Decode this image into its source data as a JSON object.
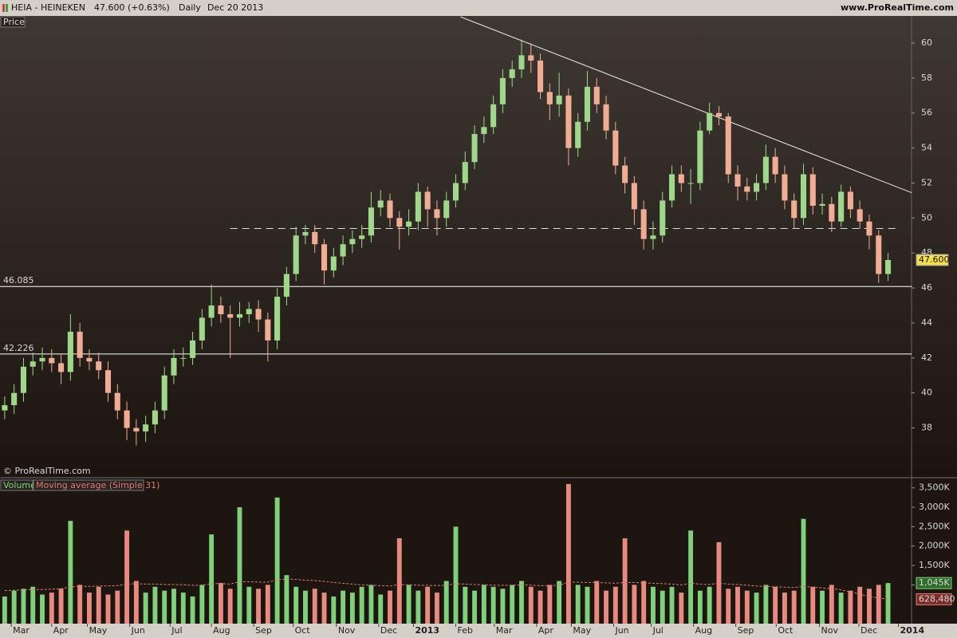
{
  "header": {
    "symbol": "HEIA - HEINEKEN",
    "quote": "47.600 (+0.63%)",
    "period": "Daily",
    "date": "Dec 20 2013",
    "site": "www.ProRealTime.com"
  },
  "chart_data": [
    {
      "type": "candlestick",
      "title": "Price",
      "watermark": "© ProRealTime.com",
      "up_color": "#9fd88a",
      "down_color": "#f0ad94",
      "x": [
        0,
        1,
        2,
        3,
        4,
        5,
        6,
        7,
        8,
        9,
        10,
        11,
        12,
        13,
        14,
        15,
        16,
        17,
        18,
        19,
        20,
        21,
        22,
        23,
        24,
        25,
        26,
        27,
        28,
        29,
        30,
        31,
        32,
        33,
        34,
        35,
        36,
        37,
        38,
        39,
        40,
        41,
        42,
        43,
        44,
        45,
        46,
        47,
        48,
        49,
        50,
        51,
        52,
        53,
        54,
        55,
        56,
        57,
        58,
        59,
        60,
        61,
        62,
        63,
        64,
        65,
        66,
        67,
        68,
        69,
        70,
        71,
        72,
        73,
        74,
        75,
        76,
        77,
        78,
        79,
        80,
        81,
        82,
        83,
        84,
        85,
        86,
        87,
        88,
        89,
        90,
        91,
        92,
        93,
        94
      ],
      "open": [
        39.0,
        39.3,
        40,
        41.5,
        41.8,
        42,
        41.7,
        41.2,
        43.5,
        42,
        41.8,
        41.3,
        40,
        39,
        38,
        37.8,
        38.2,
        39,
        41,
        42,
        42,
        43,
        44.3,
        45,
        44.5,
        44.3,
        44.5,
        44.8,
        44.2,
        43,
        45.5,
        46.8,
        49,
        49.2,
        48.5,
        47,
        47.8,
        48.5,
        48.8,
        49,
        50.6,
        51,
        50,
        49.5,
        49.8,
        51.5,
        50.5,
        50,
        51,
        52,
        53.2,
        54.8,
        55.2,
        56.5,
        58,
        58.5,
        59.3,
        59,
        57.2,
        56.5,
        57,
        54,
        55.5,
        57.5,
        56.5,
        55,
        53,
        52,
        50.5,
        48.8,
        49,
        51,
        52.5,
        52,
        52,
        55,
        56,
        55.8,
        52.5,
        51.8,
        51.5,
        52,
        53.5,
        52.5,
        51,
        50,
        52.5,
        50.7,
        50.8,
        49.8,
        51.5,
        50.5,
        49.8,
        49,
        46.8
      ],
      "high": [
        39.8,
        40.5,
        42,
        42.3,
        42.6,
        42.5,
        42.2,
        44.5,
        44,
        42.5,
        42.3,
        41.8,
        40.5,
        39.5,
        38.5,
        38.7,
        39.5,
        41.5,
        42.5,
        42.6,
        43.5,
        44.8,
        46.2,
        45.5,
        45,
        45.2,
        45.2,
        45.3,
        44.6,
        46,
        47.2,
        49.5,
        49.6,
        49.6,
        48.8,
        48.3,
        49,
        49.3,
        49.6,
        51.5,
        51.6,
        51.4,
        50.4,
        50.5,
        52,
        51.8,
        51,
        51.5,
        52.5,
        53.8,
        55.3,
        55.8,
        57,
        58.5,
        59,
        60.2,
        60,
        59.4,
        57.7,
        58.3,
        57.4,
        56,
        58.4,
        58,
        57,
        55.5,
        53.5,
        52.4,
        51,
        49.8,
        51.5,
        53,
        53,
        52.8,
        55.5,
        56.6,
        56.4,
        56,
        53,
        52.3,
        52.5,
        54.2,
        54,
        53,
        51.4,
        53.1,
        52.9,
        51.4,
        51.2,
        51.9,
        51.8,
        51,
        50.2,
        49.3,
        48
      ],
      "low": [
        38.5,
        38.8,
        39.5,
        41,
        41.3,
        41.2,
        40.5,
        40.7,
        41.5,
        41.3,
        40.8,
        39.5,
        38.5,
        37.3,
        37,
        37.2,
        37.7,
        38.5,
        40.5,
        41.5,
        41.6,
        42.5,
        43.8,
        44,
        42,
        43.8,
        44,
        43.5,
        41.8,
        42.5,
        45,
        46.4,
        48.5,
        48,
        46.2,
        46.6,
        47.3,
        48,
        48.3,
        48.6,
        50.1,
        49.5,
        48.2,
        49,
        49.3,
        49.5,
        49,
        49.5,
        50.6,
        51.6,
        52.8,
        54.3,
        54.8,
        56,
        57.5,
        58,
        58.3,
        56.8,
        55.6,
        55.8,
        53,
        53.5,
        55,
        56,
        54.5,
        52.5,
        51.4,
        49.6,
        48.2,
        48.2,
        48.6,
        50.6,
        51.5,
        50.8,
        51.6,
        54.8,
        55.3,
        52,
        51,
        51,
        51,
        51.6,
        52,
        50.5,
        49.4,
        49.6,
        50.2,
        50.2,
        49.2,
        49.5,
        50,
        49.4,
        48.2,
        46.3,
        46.4
      ],
      "close": [
        39.3,
        40,
        41.5,
        41.8,
        42,
        41.7,
        41.2,
        43.5,
        42,
        41.8,
        41.3,
        40,
        39,
        38,
        37.8,
        38.2,
        39,
        41,
        42,
        42,
        43,
        44.3,
        45,
        44.5,
        44.3,
        44.5,
        44.8,
        44.2,
        43,
        45.5,
        46.8,
        49,
        49.2,
        48.5,
        47,
        47.8,
        48.5,
        48.8,
        49,
        50.6,
        51,
        50,
        49.5,
        49.8,
        51.5,
        50.5,
        50,
        51,
        52,
        53.2,
        54.8,
        55.2,
        56.5,
        58,
        58.5,
        59.3,
        59,
        57.2,
        56.5,
        57,
        54,
        55.5,
        57.5,
        56.5,
        55,
        53,
        52,
        50.5,
        48.8,
        49,
        51,
        52.5,
        52,
        52,
        55,
        56,
        55.8,
        52.5,
        51.8,
        51.5,
        52,
        53.5,
        52.5,
        51,
        50,
        52.5,
        50.7,
        50.8,
        49.8,
        51.5,
        50.5,
        49.8,
        49,
        46.8,
        47.6
      ],
      "xlim": [
        -0.5,
        96.5
      ],
      "ylim": [
        35.2,
        61.55
      ],
      "yticks": [
        38,
        40,
        42,
        44,
        46,
        48,
        50,
        52,
        54,
        56,
        58,
        60
      ],
      "xticks": [
        {
          "value": 0.7,
          "label": "Mar"
        },
        {
          "value": 5.0,
          "label": "Apr"
        },
        {
          "value": 8.8,
          "label": "May"
        },
        {
          "value": 13.3,
          "label": "Jun"
        },
        {
          "value": 17.6,
          "label": "Jul"
        },
        {
          "value": 22.0,
          "label": "Aug"
        },
        {
          "value": 26.5,
          "label": "Sep"
        },
        {
          "value": 30.7,
          "label": "Oct"
        },
        {
          "value": 35.3,
          "label": "Nov"
        },
        {
          "value": 39.8,
          "label": "Dec"
        },
        {
          "value": 43.5,
          "label": "2013"
        },
        {
          "value": 48.0,
          "label": "Feb"
        },
        {
          "value": 52.1,
          "label": "Mar"
        },
        {
          "value": 56.6,
          "label": "Apr"
        },
        {
          "value": 60.3,
          "label": "May"
        },
        {
          "value": 64.8,
          "label": "Jun"
        },
        {
          "value": 68.8,
          "label": "Jul"
        },
        {
          "value": 73.3,
          "label": "Aug"
        },
        {
          "value": 77.8,
          "label": "Sep"
        },
        {
          "value": 82.1,
          "label": "Oct"
        },
        {
          "value": 86.7,
          "label": "Nov"
        },
        {
          "value": 90.9,
          "label": "Dec"
        },
        {
          "value": 95.1,
          "label": "2014"
        }
      ],
      "last_price": {
        "value": 47.6,
        "label": "47.600"
      },
      "levels": [
        46.085,
        42.226
      ],
      "dashed_level": {
        "value": 49.4,
        "x": [
          24,
          95
        ]
      },
      "trendline": {
        "x": [
          48.5,
          96.5
        ],
        "y": [
          61.5,
          51.45
        ]
      }
    },
    {
      "type": "volume",
      "title": "Volume",
      "series": [
        {
          "name": "Volume",
          "color": "#7fd07a",
          "down_color": "#e88a80",
          "last_label": "1,045K",
          "values": [
            700,
            850,
            900,
            950,
            750,
            800,
            900,
            2650,
            1000,
            800,
            950,
            750,
            850,
            2400,
            1100,
            800,
            950,
            850,
            900,
            800,
            700,
            1000,
            2300,
            1050,
            900,
            3000,
            950,
            900,
            1000,
            3250,
            1250,
            950,
            850,
            900,
            800,
            700,
            850,
            800,
            950,
            1000,
            750,
            850,
            2200,
            1000,
            850,
            950,
            800,
            1100,
            2500,
            950,
            850,
            1000,
            950,
            900,
            1000,
            1100,
            950,
            850,
            1000,
            1100,
            3600,
            1000,
            950,
            1100,
            850,
            950,
            2200,
            1000,
            1100,
            950,
            850,
            950,
            800,
            2400,
            850,
            950,
            2100,
            900,
            950,
            850,
            800,
            1000,
            950,
            800,
            850,
            2700,
            950,
            850,
            1000,
            800,
            850,
            950,
            900,
            1000,
            1045
          ]
        },
        {
          "name": "Moving average (Simple 31)",
          "color": "#e07a70",
          "last_label": "628,480",
          "values": [
            850,
            860,
            870,
            880,
            880,
            890,
            900,
            950,
            960,
            960,
            970,
            970,
            980,
            1020,
            1030,
            1020,
            1020,
            1010,
            1010,
            1000,
            990,
            990,
            1030,
            1030,
            1020,
            1080,
            1080,
            1070,
            1070,
            1130,
            1150,
            1140,
            1120,
            1110,
            1090,
            1060,
            1040,
            1020,
            1000,
            990,
            980,
            970,
            1010,
            1000,
            990,
            990,
            980,
            990,
            1030,
            1020,
            1010,
            1000,
            990,
            990,
            990,
            1000,
            990,
            980,
            980,
            990,
            1070,
            1070,
            1060,
            1060,
            1050,
            1040,
            1060,
            1060,
            1050,
            1040,
            1030,
            1020,
            1000,
            1040,
            1020,
            1010,
            1040,
            1020,
            1010,
            990,
            970,
            960,
            950,
            940,
            930,
            960,
            940,
            920,
            900,
            870,
            820,
            760,
            700,
            660,
            628.48
          ]
        }
      ],
      "ylim": [
        0,
        3700
      ],
      "yticks": [
        {
          "value": 1000,
          "label": "1,000K"
        },
        {
          "value": 1500,
          "label": "1,500K"
        },
        {
          "value": 2000,
          "label": "2,000K"
        },
        {
          "value": 2500,
          "label": "2,500K"
        },
        {
          "value": 3000,
          "label": "3,000K"
        },
        {
          "value": 3500,
          "label": "3,500K"
        }
      ]
    }
  ]
}
